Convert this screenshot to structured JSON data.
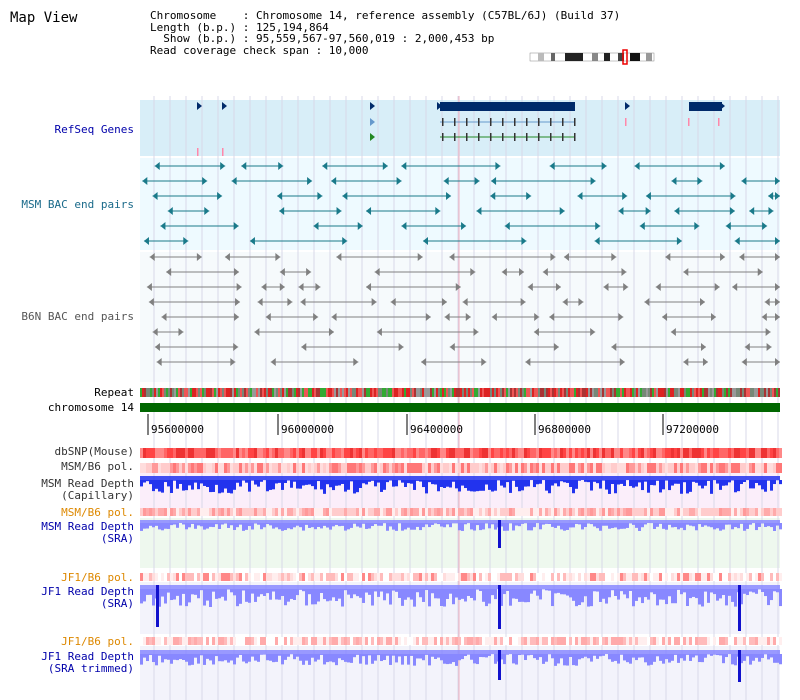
{
  "view_title": "Map View",
  "header": {
    "chromosome": "Chromosome    : Chromosome 14, reference assembly (C57BL/6J) (Build 37)",
    "length": "Length (b.p.) : 125,194,864",
    "show": "  Show (b.p.) : 95,559,567-97,560,019 : 2,000,453 bp",
    "span": "Read coverage check span : 10,000"
  },
  "tracks": {
    "refseq": "RefSeq Genes",
    "msm_bac": "MSM BAC end pairs",
    "b6n_bac": "B6N BAC end pairs",
    "repeat": "Repeat",
    "chromosome": "chromosome 14",
    "dbsnp": "dbSNP(Mouse)",
    "msm_pol": "MSM/B6 pol.",
    "msm_depth_cap": "MSM Read Depth\n(Capillary)",
    "msm_pol2": "MSM/B6 pol.",
    "msm_depth_sra": "MSM Read Depth\n(SRA)",
    "jf1_pol": "JF1/B6 pol.",
    "jf1_depth_sra": "JF1 Read Depth\n(SRA)",
    "jf1_pol2": "JF1/B6 pol.",
    "jf1_depth_trim": "JF1 Read Depth\n(SRA trimmed)"
  },
  "ruler": {
    "ticks": [
      "95600000",
      "96000000",
      "96400000",
      "96800000",
      "97200000"
    ]
  },
  "colors": {
    "refseq_bg": "#d8eef8",
    "bac_bg": "#eefaff",
    "gene": "#002a6a",
    "msm_bac": "#1a7a8a",
    "b6n_bac": "#808080",
    "chromosome": "#006600",
    "snp": "#ee2222",
    "depth_blue": "#2233ee",
    "depth_light": "#8888ff",
    "label_blue": "#0000aa",
    "label_orange": "#dd8800",
    "label_teal": "#1a6a8a"
  }
}
